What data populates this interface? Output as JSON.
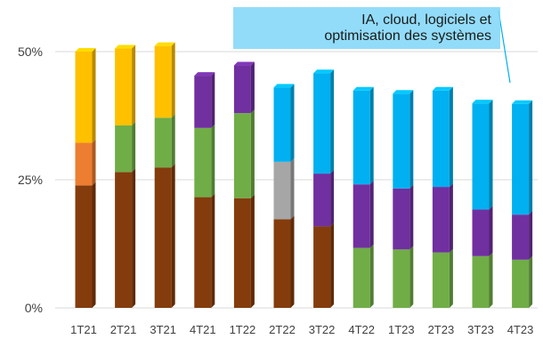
{
  "chart_data": {
    "type": "bar",
    "stacked": true,
    "categories": [
      "1T21",
      "2T21",
      "3T21",
      "4T21",
      "1T22",
      "2T22",
      "3T22",
      "4T22",
      "1T23",
      "2T23",
      "3T23",
      "4T23"
    ],
    "yticks": [
      "0%",
      "25%",
      "50%"
    ],
    "ylim": [
      0,
      50
    ],
    "grid": true,
    "series": [
      {
        "color": "#843c0c",
        "values": [
          23.9,
          26.5,
          27.4,
          21.6,
          21.4,
          17.3,
          15.9,
          0,
          0,
          0,
          0,
          0
        ]
      },
      {
        "color": "#70ad47",
        "values": [
          0,
          9.1,
          9.7,
          13.5,
          16.6,
          0,
          0,
          11.7,
          11.4,
          10.8,
          10.1,
          9.4
        ]
      },
      {
        "color": "#7030a0",
        "values": [
          0,
          0,
          0,
          10.2,
          9.3,
          0,
          10.3,
          12.4,
          11.9,
          12.8,
          9.1,
          8.8
        ]
      },
      {
        "color": "#a6a6a6",
        "values": [
          0,
          0,
          0,
          0,
          0,
          11.2,
          0,
          0,
          0,
          0,
          0,
          0
        ]
      },
      {
        "color": "#ed7d31",
        "values": [
          8.3,
          0,
          0,
          0,
          0,
          0,
          0,
          0,
          0,
          0,
          0,
          0
        ]
      },
      {
        "color": "#ffc000",
        "values": [
          17.8,
          15.0,
          14.0,
          0,
          0,
          0,
          0,
          0,
          0,
          0,
          0,
          0
        ]
      },
      {
        "name": "IA, cloud, logiciels et optimisation des systèmes",
        "color": "#00b0f0",
        "values": [
          0,
          0,
          0,
          0,
          0,
          14.5,
          19.6,
          18.3,
          18.5,
          18.8,
          20.7,
          21.6
        ]
      }
    ],
    "annotation": {
      "lines": [
        "IA, cloud, logiciels et",
        "optimisation des systèmes"
      ],
      "series_index": 6
    }
  }
}
